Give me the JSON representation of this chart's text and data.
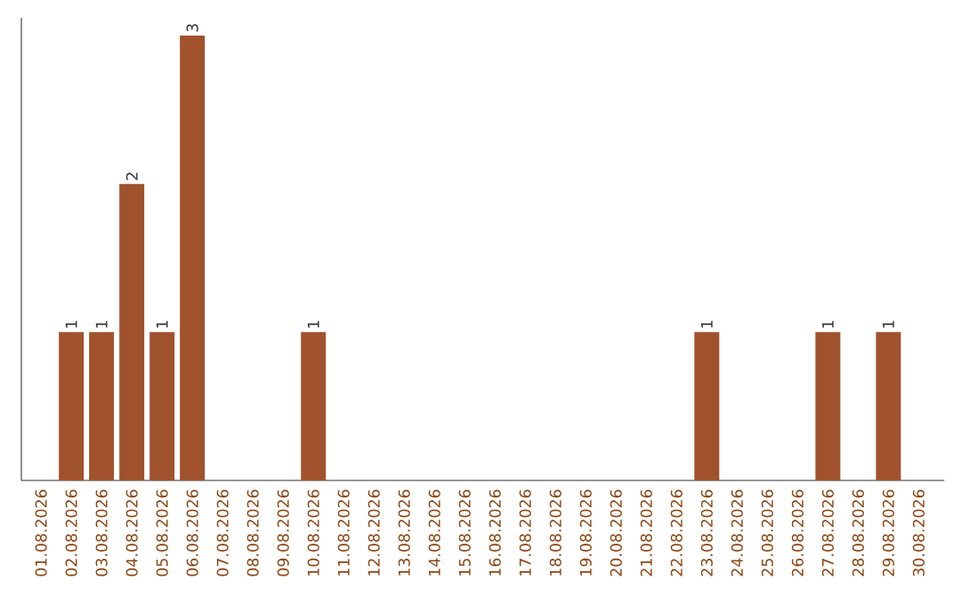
{
  "chart_data": {
    "type": "bar",
    "categories": [
      "01.08.2026",
      "02.08.2026",
      "03.08.2026",
      "04.08.2026",
      "05.08.2026",
      "06.08.2026",
      "07.08.2026",
      "08.08.2026",
      "09.08.2026",
      "10.08.2026",
      "11.08.2026",
      "12.08.2026",
      "13.08.2026",
      "14.08.2026",
      "15.08.2026",
      "16.08.2026",
      "17.08.2026",
      "18.08.2026",
      "19.08.2026",
      "20.08.2026",
      "21.08.2026",
      "22.08.2026",
      "23.08.2026",
      "24.08.2026",
      "25.08.2026",
      "26.08.2026",
      "27.08.2026",
      "28.08.2026",
      "29.08.2026",
      "30.08.2026"
    ],
    "values": [
      0,
      1,
      1,
      2,
      1,
      3,
      0,
      0,
      0,
      1,
      0,
      0,
      0,
      0,
      0,
      0,
      0,
      0,
      0,
      0,
      0,
      0,
      1,
      0,
      0,
      0,
      1,
      0,
      1,
      0
    ],
    "value_labels": [
      null,
      "1",
      "1",
      "2",
      "1",
      "3",
      null,
      null,
      null,
      "1",
      null,
      null,
      null,
      null,
      null,
      null,
      null,
      null,
      null,
      null,
      null,
      null,
      "1",
      null,
      null,
      null,
      "1",
      null,
      "1",
      null
    ],
    "color": "#a0522d"
  }
}
